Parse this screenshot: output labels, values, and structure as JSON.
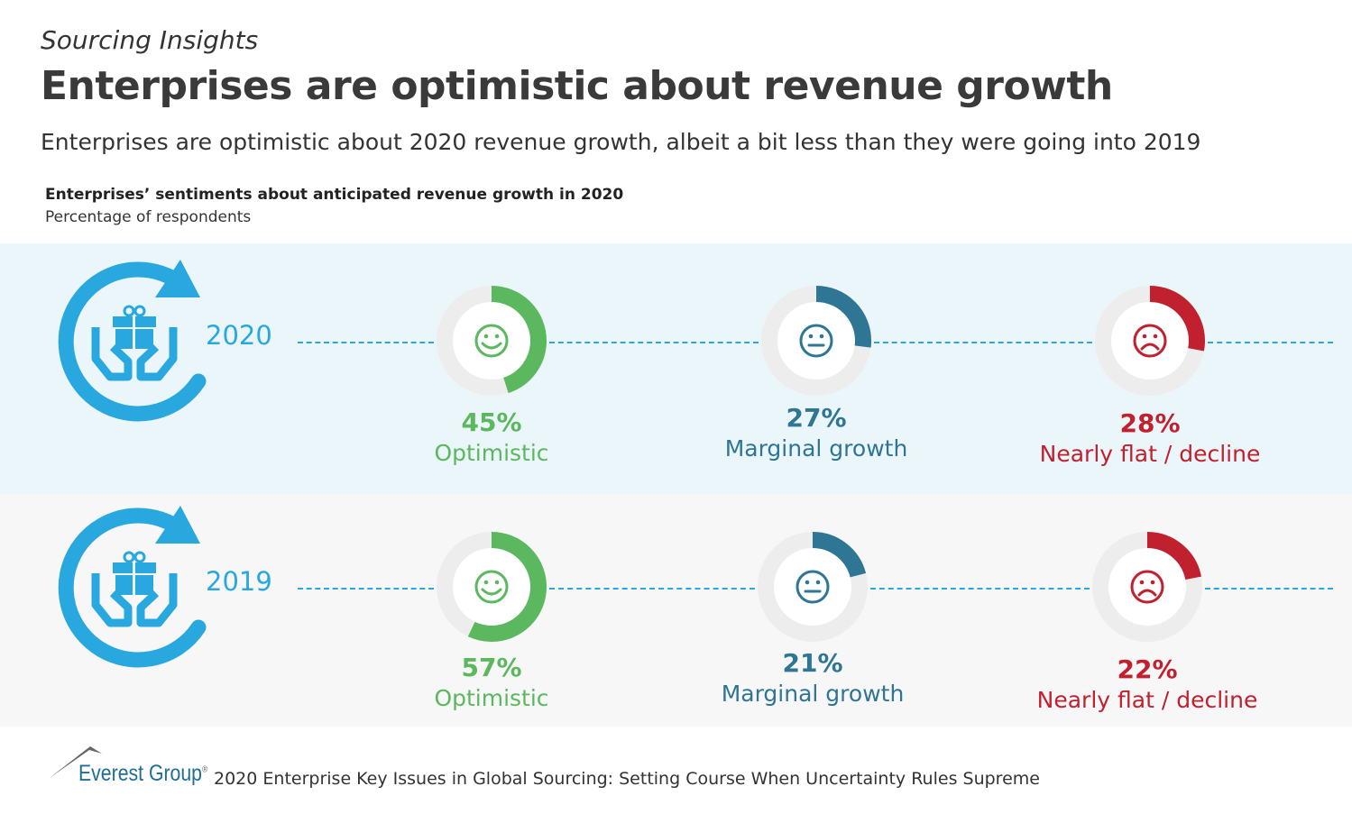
{
  "header": {
    "kicker": "Sourcing Insights",
    "title": "Enterprises are optimistic about revenue growth",
    "subtitle": "Enterprises are optimistic about 2020 revenue growth, albeit a bit less than they were going into 2019"
  },
  "chart_data": {
    "type": "donut",
    "title": "Enterprises’ sentiments about anticipated revenue growth in 2020",
    "unit": "Percentage of respondents",
    "categories": [
      "Optimistic",
      "Marginal growth",
      "Nearly flat / decline"
    ],
    "colors": [
      "#5cb85f",
      "#2f7594",
      "#c1202f"
    ],
    "series": [
      {
        "name": "2020",
        "values": [
          45,
          27,
          28
        ],
        "labels": [
          "45%",
          "27%",
          "28%"
        ]
      },
      {
        "name": "2019",
        "values": [
          57,
          21,
          22
        ],
        "labels": [
          "57%",
          "21%",
          "22%"
        ]
      }
    ]
  },
  "footer": {
    "brand": "Everest Group",
    "registered": "®",
    "source": "2020 Enterprise Key Issues in Global Sourcing: Setting Course When Uncertainty Rules Supreme"
  }
}
